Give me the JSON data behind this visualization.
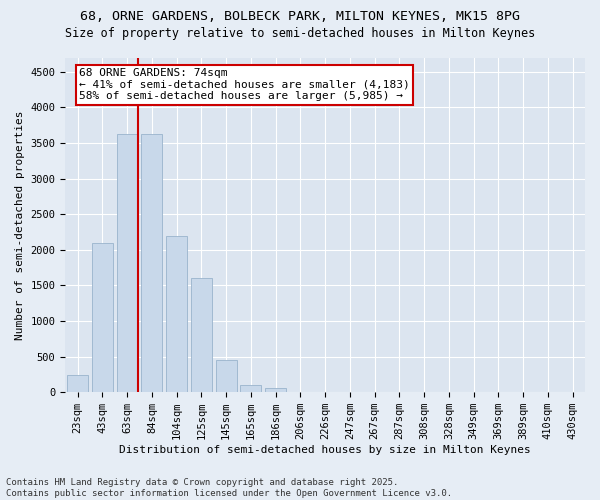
{
  "title_line1": "68, ORNE GARDENS, BOLBECK PARK, MILTON KEYNES, MK15 8PG",
  "title_line2": "Size of property relative to semi-detached houses in Milton Keynes",
  "xlabel": "Distribution of semi-detached houses by size in Milton Keynes",
  "ylabel": "Number of semi-detached properties",
  "categories": [
    "23sqm",
    "43sqm",
    "63sqm",
    "84sqm",
    "104sqm",
    "125sqm",
    "145sqm",
    "165sqm",
    "186sqm",
    "206sqm",
    "226sqm",
    "247sqm",
    "267sqm",
    "287sqm",
    "308sqm",
    "328sqm",
    "349sqm",
    "369sqm",
    "389sqm",
    "410sqm",
    "430sqm"
  ],
  "values": [
    240,
    2100,
    3620,
    3620,
    2200,
    1600,
    450,
    100,
    55,
    0,
    0,
    0,
    0,
    0,
    0,
    0,
    0,
    0,
    0,
    0,
    0
  ],
  "bar_color": "#c8d8ea",
  "bar_edge_color": "#9ab4cc",
  "vline_color": "#cc0000",
  "annotation_title": "68 ORNE GARDENS: 74sqm",
  "annotation_line1": "← 41% of semi-detached houses are smaller (4,183)",
  "annotation_line2": "58% of semi-detached houses are larger (5,985) →",
  "annotation_box_color": "#cc0000",
  "ylim": [
    0,
    4700
  ],
  "yticks": [
    0,
    500,
    1000,
    1500,
    2000,
    2500,
    3000,
    3500,
    4000,
    4500
  ],
  "footer": "Contains HM Land Registry data © Crown copyright and database right 2025.\nContains public sector information licensed under the Open Government Licence v3.0.",
  "bg_color": "#e6edf5",
  "plot_bg_color": "#dce5f0",
  "grid_color": "#ffffff",
  "title_fontsize": 9.5,
  "subtitle_fontsize": 8.5,
  "axis_label_fontsize": 8,
  "tick_fontsize": 7.5,
  "footer_fontsize": 6.5,
  "annotation_fontsize": 8
}
